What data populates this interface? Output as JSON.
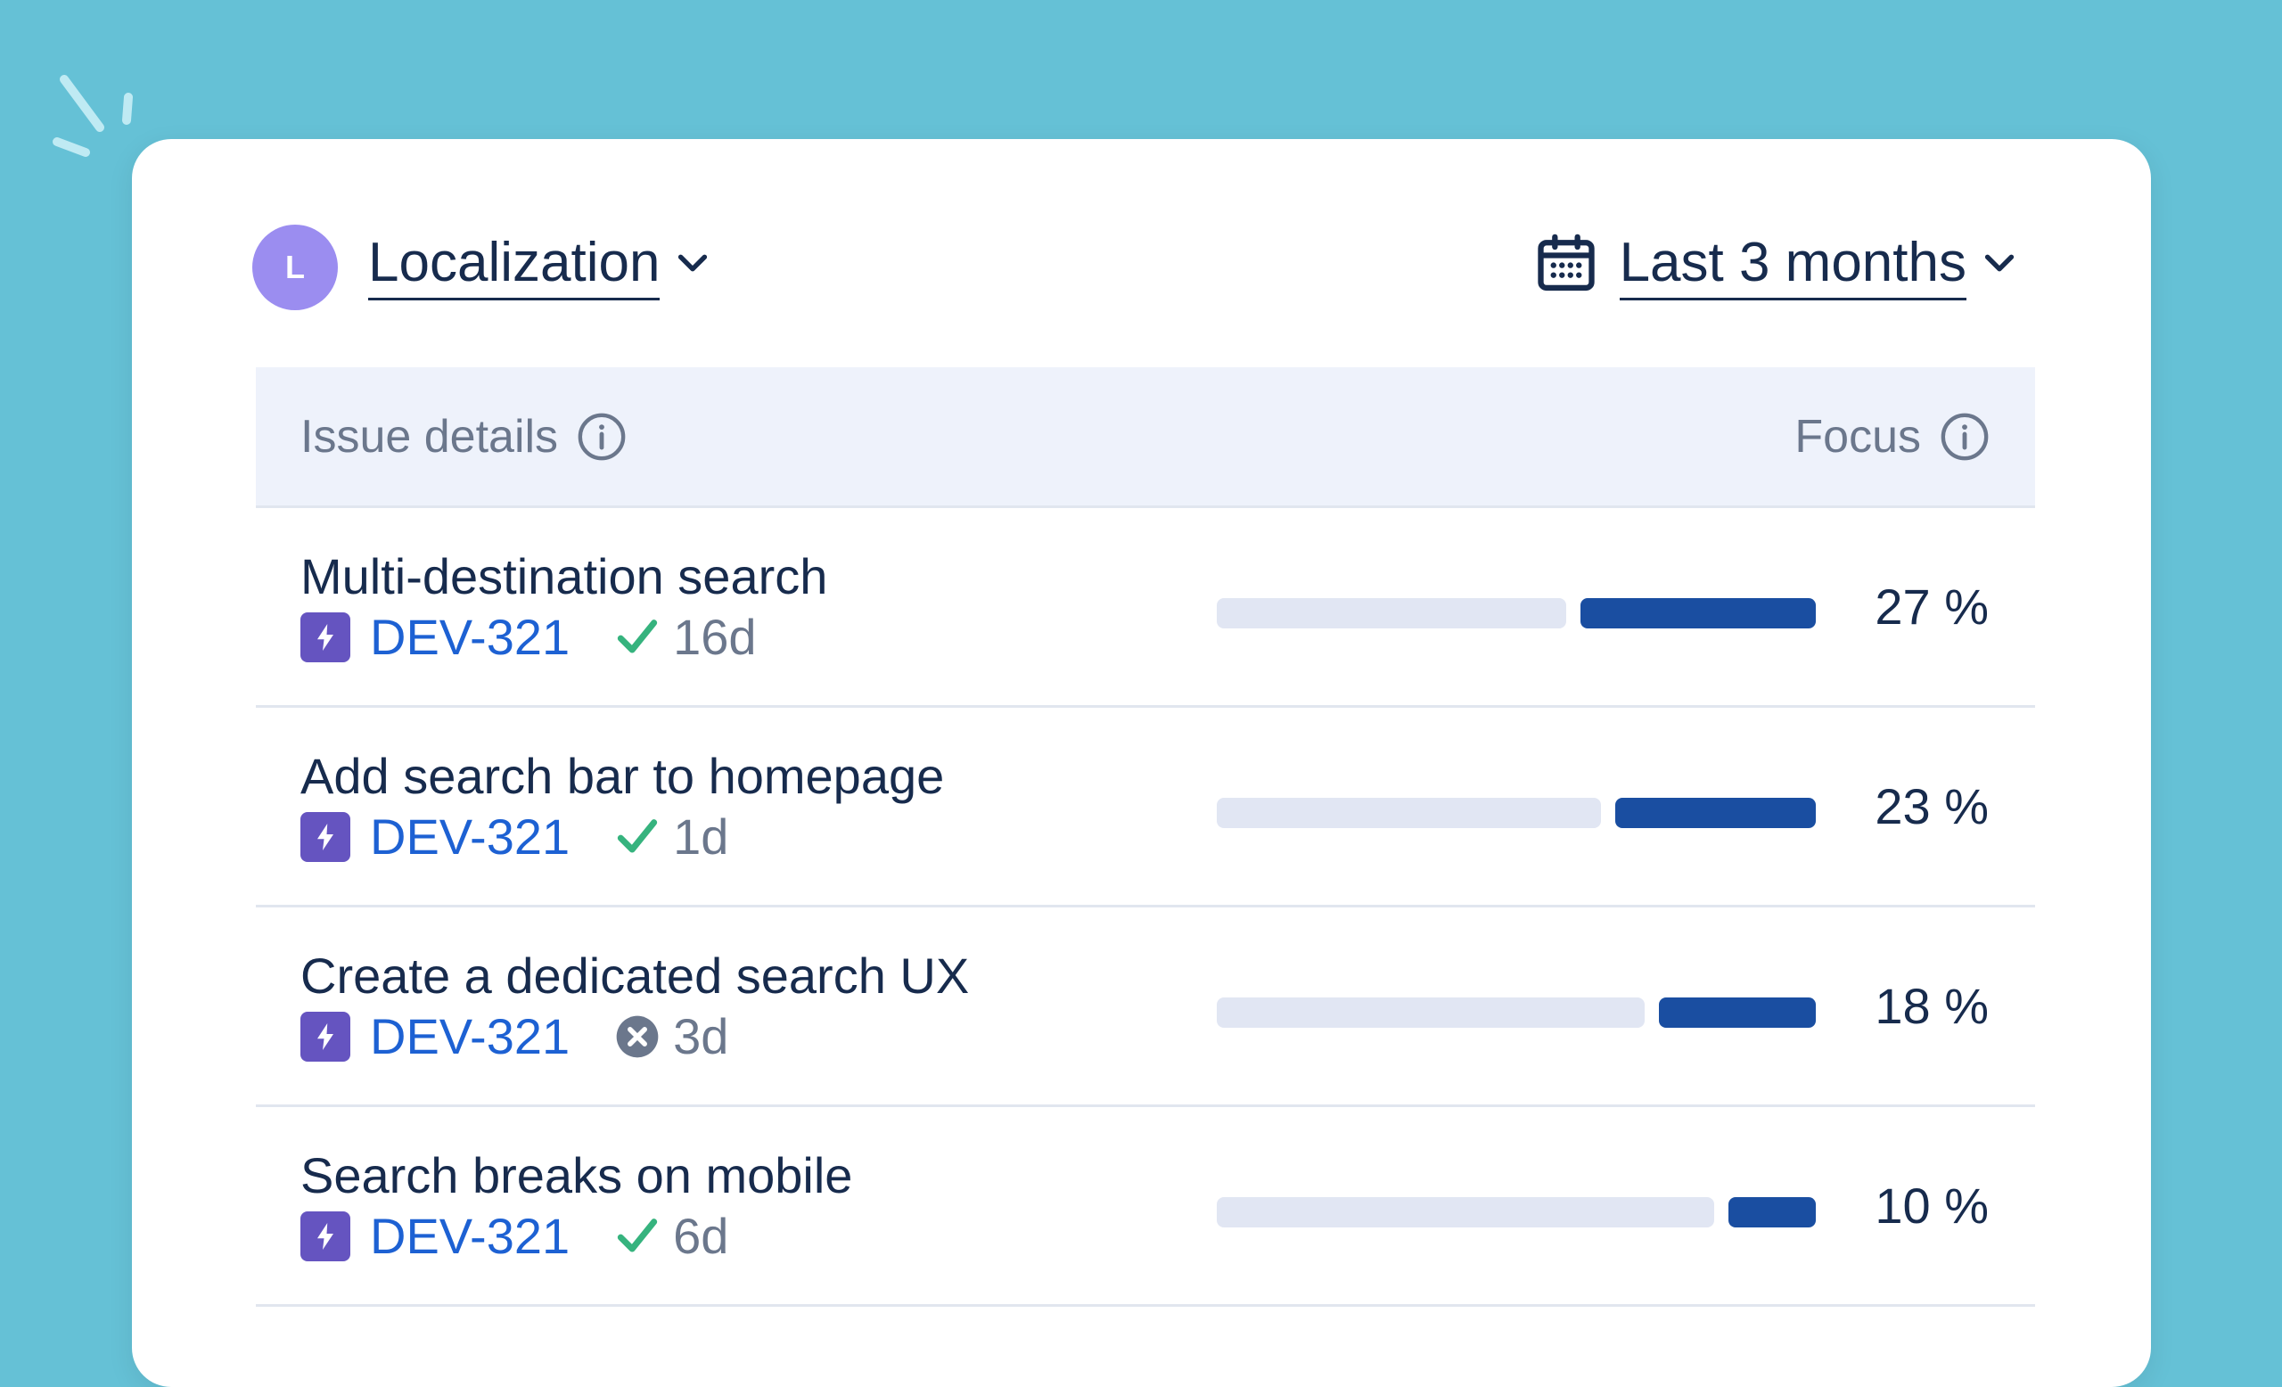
{
  "colors": {
    "background": "#65c1d6",
    "card": "#ffffff",
    "avatar": "#9b8df0",
    "header_bg": "#eef2fb",
    "issue_key": "#1d61d3",
    "bar_fill": "#1a4ea1",
    "bar_track": "#e1e6f3",
    "check": "#36b37e",
    "cancel": "#6b778c",
    "type_icon": "#6554c0"
  },
  "header": {
    "avatar_letter": "L",
    "project_label": "Localization",
    "range_label": "Last 3 months",
    "project_icon": "chevron-down-icon",
    "range_icon": "calendar-icon"
  },
  "table": {
    "col_issue": "Issue details",
    "col_focus": "Focus",
    "rows": [
      {
        "title": "Multi-destination search",
        "key": "DEV-321",
        "status": "done",
        "status_icon": "check-icon",
        "duration": "16d",
        "focus": 27,
        "focus_label": "27 %"
      },
      {
        "title": "Add search bar to homepage",
        "key": "DEV-321",
        "status": "done",
        "status_icon": "check-icon",
        "duration": "1d",
        "focus": 23,
        "focus_label": "23 %"
      },
      {
        "title": "Create a dedicated search UX",
        "key": "DEV-321",
        "status": "cancelled",
        "status_icon": "x-circle-icon",
        "duration": "3d",
        "focus": 18,
        "focus_label": "18 %"
      },
      {
        "title": "Search breaks on mobile",
        "key": "DEV-321",
        "status": "done",
        "status_icon": "check-icon",
        "duration": "6d",
        "focus": 10,
        "focus_label": "10 %"
      }
    ]
  }
}
